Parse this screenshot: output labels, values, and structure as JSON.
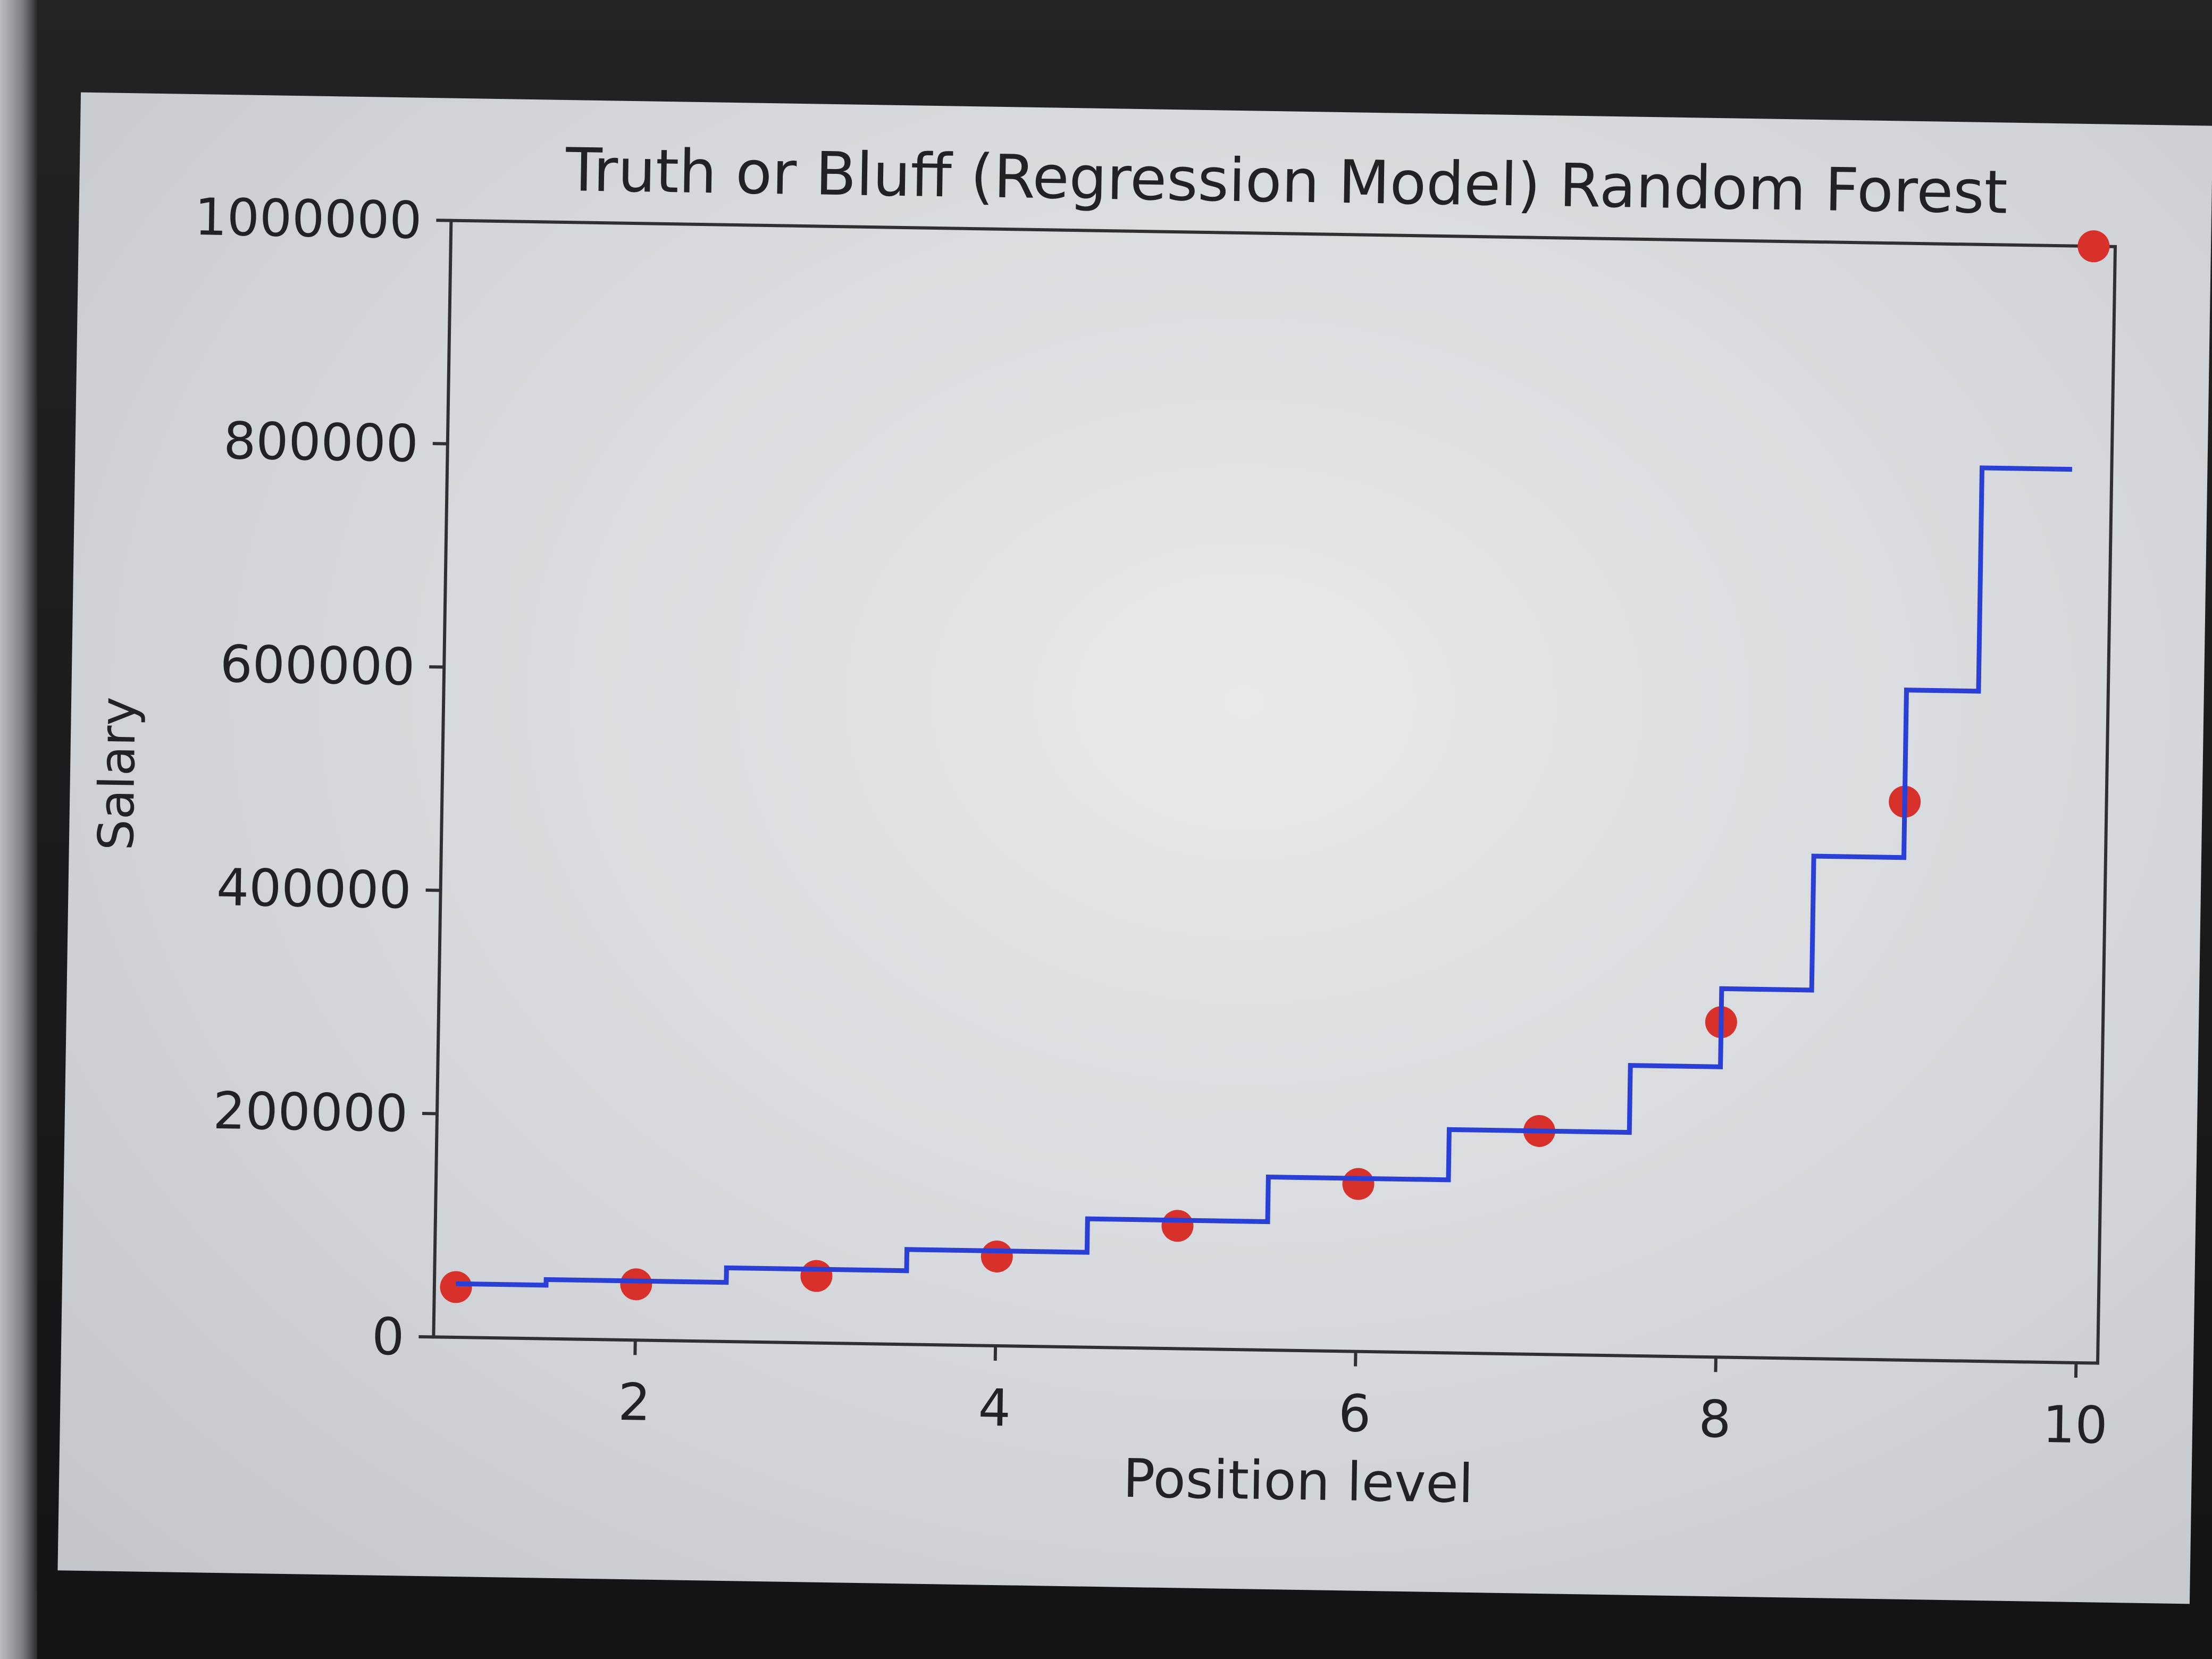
{
  "chart_data": {
    "type": "line",
    "title": "Truth or Bluff (Regression Model) Random Forest",
    "xlabel": "Position level",
    "ylabel": "Salary",
    "xlim": [
      0.88,
      10.12
    ],
    "ylim": [
      0,
      1000000
    ],
    "x_ticks": [
      2,
      4,
      6,
      8,
      10
    ],
    "y_ticks": [
      0,
      200000,
      400000,
      600000,
      800000,
      1000000
    ],
    "x_tick_labels": [
      "2",
      "4",
      "6",
      "8",
      "10"
    ],
    "y_tick_labels": [
      "0",
      "200000",
      "400000",
      "600000",
      "800000",
      "1000000"
    ],
    "grid": false,
    "series": [
      {
        "kind": "scatter",
        "color": "#d8312b",
        "x": [
          1,
          2,
          3,
          4,
          5,
          6,
          7,
          8,
          9,
          10
        ],
        "y": [
          45000,
          50000,
          60000,
          80000,
          110000,
          150000,
          200000,
          300000,
          500000,
          1000000
        ]
      },
      {
        "kind": "step",
        "color": "#2a3fd6",
        "x": [
          1,
          1.5,
          1.5,
          2.5,
          2.5,
          3.5,
          3.5,
          4.5,
          4.5,
          5.5,
          5.5,
          6.5,
          6.5,
          7.5,
          7.5,
          8,
          8,
          8.5,
          8.5,
          9,
          9,
          9.4,
          9.4,
          9.9
        ],
        "y": [
          48000,
          48000,
          53000,
          53000,
          66000,
          66000,
          85000,
          85000,
          115000,
          115000,
          155000,
          155000,
          200000,
          200000,
          260000,
          260000,
          330000,
          330000,
          450000,
          450000,
          600000,
          600000,
          800000,
          800000
        ]
      }
    ]
  }
}
